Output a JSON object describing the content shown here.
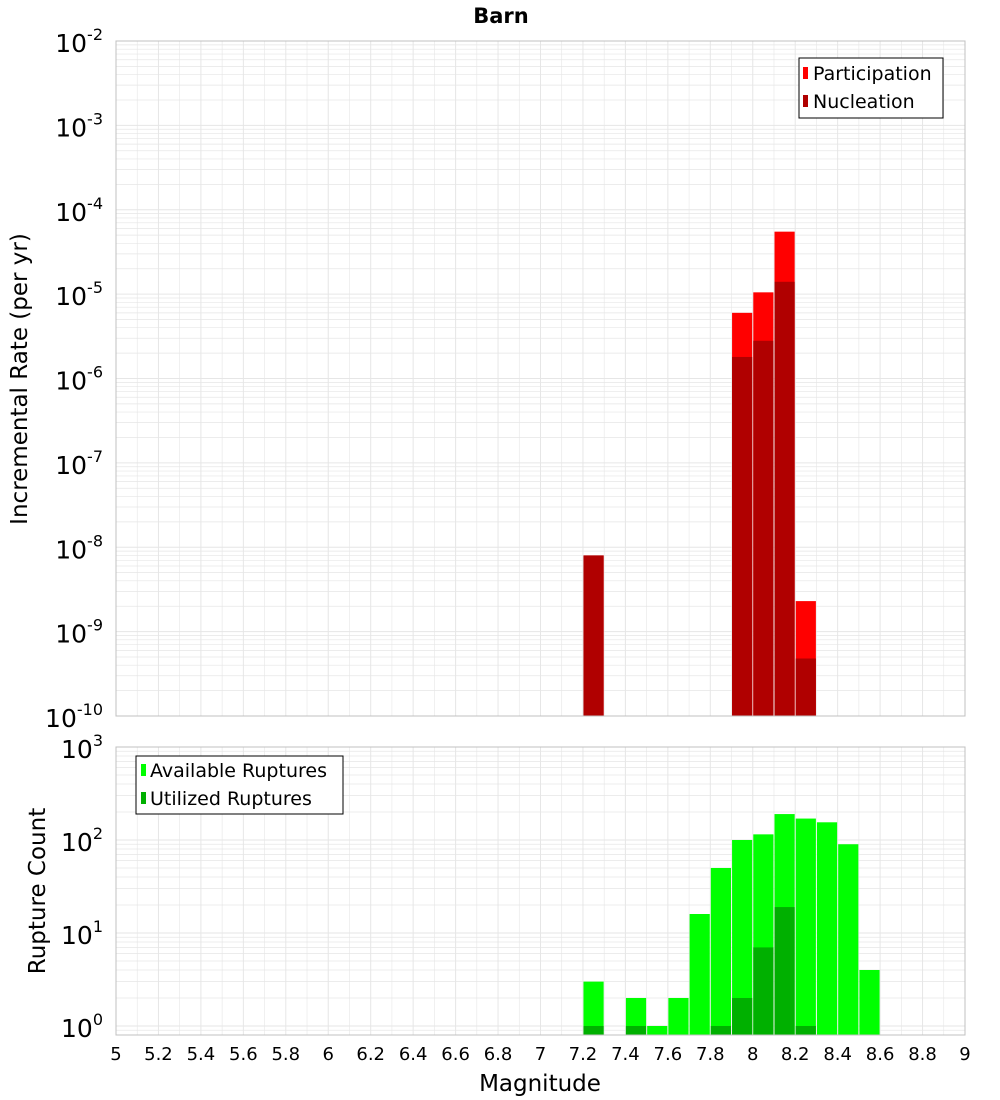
{
  "colors": {
    "participation": "#ff0000",
    "nucleation": "#b00000",
    "available": "#00ff00",
    "utilized": "#00b000",
    "grid": "#e6e6e6",
    "frame": "#c0c0c0"
  },
  "chart_data": [
    {
      "id": "rates",
      "type": "bar",
      "title": "Barn",
      "xlabel": "",
      "ylabel": "Incremental Rate (per yr)",
      "yscale": "log",
      "ylim": [
        1e-10,
        0.01
      ],
      "xlim": [
        5,
        9
      ],
      "grid": true,
      "legend_position": "top-right",
      "y_ticks": [
        {
          "base": "10",
          "exp": "-10",
          "value": 1e-10
        },
        {
          "base": "10",
          "exp": "-9",
          "value": 1e-09
        },
        {
          "base": "10",
          "exp": "-8",
          "value": 1e-08
        },
        {
          "base": "10",
          "exp": "-7",
          "value": 1e-07
        },
        {
          "base": "10",
          "exp": "-6",
          "value": 1e-06
        },
        {
          "base": "10",
          "exp": "-5",
          "value": 1e-05
        },
        {
          "base": "10",
          "exp": "-4",
          "value": 0.0001
        },
        {
          "base": "10",
          "exp": "-3",
          "value": 0.001
        },
        {
          "base": "10",
          "exp": "-2",
          "value": 0.01
        }
      ],
      "series": [
        {
          "name": "Participation",
          "color": "#ff0000",
          "points": [
            {
              "x": 7.25,
              "y": 8e-09
            },
            {
              "x": 7.95,
              "y": 6e-06
            },
            {
              "x": 8.05,
              "y": 1.05e-05
            },
            {
              "x": 8.15,
              "y": 5.5e-05
            },
            {
              "x": 8.25,
              "y": 2.3e-09
            }
          ]
        },
        {
          "name": "Nucleation",
          "color": "#b00000",
          "points": [
            {
              "x": 7.25,
              "y": 8e-09
            },
            {
              "x": 7.95,
              "y": 1.8e-06
            },
            {
              "x": 8.05,
              "y": 2.8e-06
            },
            {
              "x": 8.15,
              "y": 1.4e-05
            },
            {
              "x": 8.25,
              "y": 4.8e-10
            }
          ]
        }
      ]
    },
    {
      "id": "counts",
      "type": "bar",
      "title": "",
      "xlabel": "Magnitude",
      "ylabel": "Rupture Count",
      "yscale": "log",
      "ylim": [
        0.8,
        1000
      ],
      "xlim": [
        5,
        9
      ],
      "grid": true,
      "legend_position": "top-left",
      "x_ticks": [
        "5",
        "5.2",
        "5.4",
        "5.6",
        "5.8",
        "6",
        "6.2",
        "6.4",
        "6.6",
        "6.8",
        "7",
        "7.2",
        "7.4",
        "7.6",
        "7.8",
        "8",
        "8.2",
        "8.4",
        "8.6",
        "8.8",
        "9"
      ],
      "y_ticks": [
        {
          "base": "10",
          "exp": "0",
          "value": 1
        },
        {
          "base": "10",
          "exp": "1",
          "value": 10
        },
        {
          "base": "10",
          "exp": "2",
          "value": 100
        },
        {
          "base": "10",
          "exp": "3",
          "value": 1000
        }
      ],
      "series": [
        {
          "name": "Available Ruptures",
          "color": "#00ff00",
          "points": [
            {
              "x": 7.25,
              "y": 3
            },
            {
              "x": 7.45,
              "y": 2
            },
            {
              "x": 7.55,
              "y": 1
            },
            {
              "x": 7.65,
              "y": 2
            },
            {
              "x": 7.75,
              "y": 16
            },
            {
              "x": 7.85,
              "y": 50
            },
            {
              "x": 7.95,
              "y": 100
            },
            {
              "x": 8.05,
              "y": 115
            },
            {
              "x": 8.15,
              "y": 190
            },
            {
              "x": 8.25,
              "y": 170
            },
            {
              "x": 8.35,
              "y": 155
            },
            {
              "x": 8.45,
              "y": 90
            },
            {
              "x": 8.55,
              "y": 4
            }
          ]
        },
        {
          "name": "Utilized Ruptures",
          "color": "#00b000",
          "points": [
            {
              "x": 7.25,
              "y": 1
            },
            {
              "x": 7.45,
              "y": 1
            },
            {
              "x": 7.85,
              "y": 1
            },
            {
              "x": 7.95,
              "y": 2
            },
            {
              "x": 8.05,
              "y": 7
            },
            {
              "x": 8.15,
              "y": 19
            },
            {
              "x": 8.25,
              "y": 1
            }
          ]
        }
      ]
    }
  ]
}
